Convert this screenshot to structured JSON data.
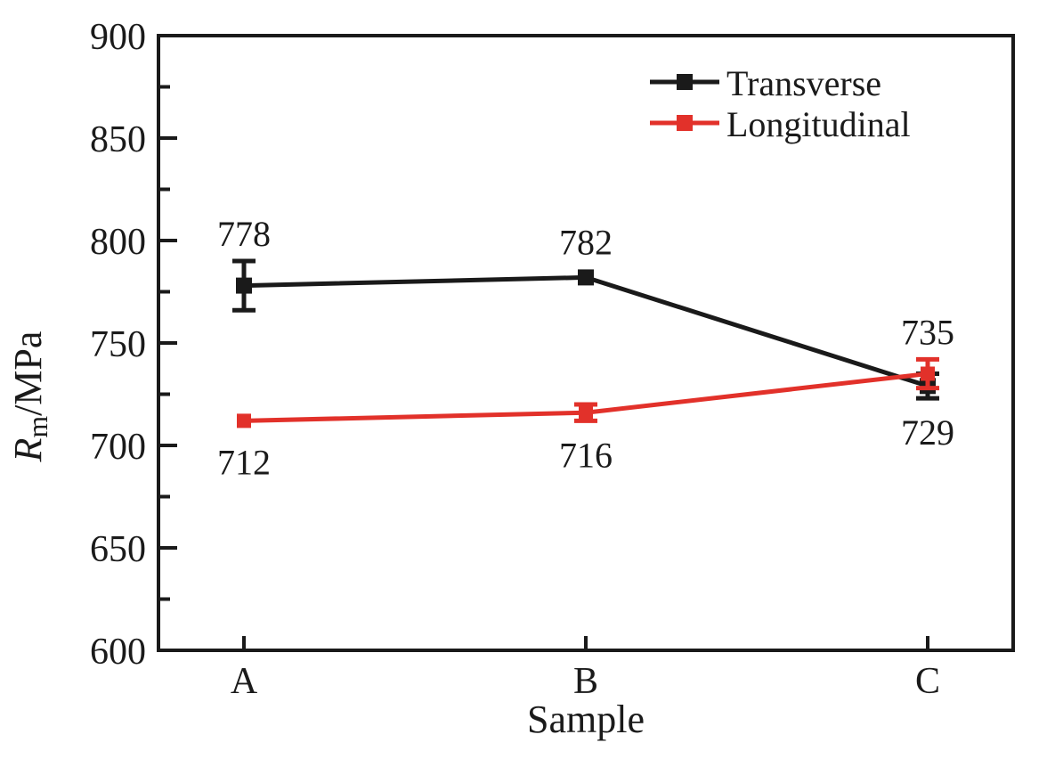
{
  "chart_data": {
    "type": "line",
    "title": "",
    "xlabel": "Sample",
    "ylabel": {
      "symbol": "R",
      "subscript": "m",
      "unit": "/MPa"
    },
    "categories": [
      "A",
      "B",
      "C"
    ],
    "series": [
      {
        "name": "Transverse",
        "color": "#1a1a1a",
        "values": [
          778,
          782,
          729
        ],
        "errors": [
          12,
          0,
          6
        ],
        "point_labels": [
          "778",
          "782",
          "729"
        ],
        "label_positions": [
          "above",
          "above",
          "below"
        ]
      },
      {
        "name": "Longitudinal",
        "color": "#e2312a",
        "values": [
          712,
          716,
          735
        ],
        "errors": [
          0,
          4,
          7
        ],
        "point_labels": [
          "712",
          "716",
          "735"
        ],
        "label_positions": [
          "below",
          "below",
          "above"
        ]
      }
    ],
    "ylim": [
      600,
      900
    ],
    "ytick_step": 50,
    "yminor_step": 25,
    "yticks": [
      600,
      650,
      700,
      750,
      800,
      850,
      900
    ],
    "grid": false,
    "legend_position": "top-right",
    "frame_color": "#1a1a1a",
    "background_color": "#ffffff"
  }
}
